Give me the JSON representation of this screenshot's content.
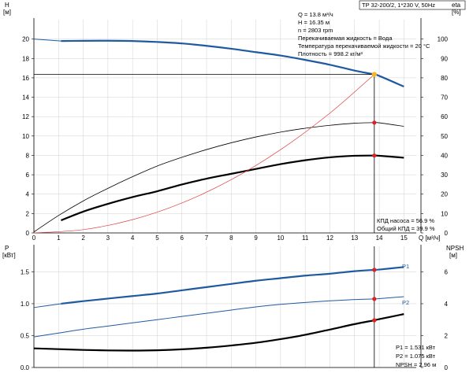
{
  "header": {
    "pump": "TP 32-200/2, 1*230 V, 50Hz"
  },
  "top_chart": {
    "ylabel_left": "H",
    "ylabel_left_unit": "[м]",
    "ylabel_right": "eta",
    "ylabel_right_unit": "[%]",
    "xlabel": "Q [м³/ч]",
    "info_lines": [
      "Q = 13.8 м³/ч",
      "H = 16.35 м",
      "n = 2803 rpm",
      "Перекачиваемая жидкость = Вода",
      "Температура перекачиваемой жидкости = 20 °C",
      "Плотность = 998.2 кг/м³"
    ],
    "eff_lines": [
      "КПД насоса = 56.9 %",
      "Общий КПД = 39.9 %"
    ]
  },
  "bottom_chart": {
    "ylabel_left": "P",
    "ylabel_left_unit": "[кВт]",
    "ylabel_right": "NPSH",
    "ylabel_right_unit": "[м]",
    "curve_labels": [
      "P1",
      "P2"
    ],
    "info_lines": [
      "P1 = 1.531 кВт",
      "P2 = 1.075 кВт",
      "NPSH = 2.96 м"
    ]
  },
  "chart_data": [
    {
      "type": "line",
      "x": [
        0,
        1,
        2,
        3,
        4,
        5,
        6,
        7,
        8,
        9,
        10,
        11,
        12,
        13,
        13.8,
        14,
        15
      ],
      "xlim": [
        0,
        15.5
      ],
      "xticks": [
        0,
        1,
        2,
        3,
        4,
        5,
        6,
        7,
        8,
        9,
        10,
        11,
        12,
        13,
        14,
        15
      ],
      "ylim": [
        0,
        22
      ],
      "yticks": [
        0,
        2,
        4,
        6,
        8,
        10,
        12,
        14,
        16,
        18,
        20
      ],
      "y2lim": [
        0,
        110
      ],
      "y2ticks": [
        0,
        10,
        20,
        30,
        40,
        50,
        60,
        70,
        80,
        90,
        100
      ],
      "series": [
        {
          "key": "H",
          "axis": "left",
          "color": "#1f5aa0",
          "points": [
            [
              1.1,
              19.8
            ],
            [
              2,
              19.82
            ],
            [
              3,
              19.83
            ],
            [
              4,
              19.8
            ],
            [
              5,
              19.7
            ],
            [
              6,
              19.55
            ],
            [
              7,
              19.3
            ],
            [
              8,
              19.0
            ],
            [
              9,
              18.65
            ],
            [
              10,
              18.3
            ],
            [
              11,
              17.85
            ],
            [
              12,
              17.35
            ],
            [
              13,
              16.75
            ],
            [
              13.8,
              16.35
            ],
            [
              14,
              16.2
            ],
            [
              15,
              15.1
            ]
          ]
        },
        {
          "key": "H_extension",
          "axis": "left",
          "color": "#1f5aa0",
          "points": [
            [
              0,
              20.0
            ],
            [
              1.1,
              19.8
            ]
          ]
        },
        {
          "key": "eta_total",
          "axis": "right",
          "color": "#000000",
          "points": [
            [
              1.1,
              6.5
            ],
            [
              2,
              11
            ],
            [
              3,
              15
            ],
            [
              4,
              18.5
            ],
            [
              5,
              21.5
            ],
            [
              6,
              25
            ],
            [
              7,
              28
            ],
            [
              8,
              30.5
            ],
            [
              9,
              33
            ],
            [
              10,
              35.5
            ],
            [
              11,
              37.5
            ],
            [
              12,
              39
            ],
            [
              13,
              39.8
            ],
            [
              13.8,
              39.9
            ],
            [
              14,
              39.8
            ],
            [
              15,
              38.8
            ]
          ]
        },
        {
          "key": "eta_pump",
          "axis": "right",
          "color": "#000000",
          "points": [
            [
              0,
              0.5
            ],
            [
              1,
              9
            ],
            [
              2,
              16.5
            ],
            [
              3,
              23
            ],
            [
              4,
              29
            ],
            [
              5,
              34.5
            ],
            [
              6,
              39
            ],
            [
              7,
              43
            ],
            [
              8,
              46.5
            ],
            [
              9,
              49.5
            ],
            [
              10,
              52
            ],
            [
              11,
              54
            ],
            [
              12,
              55.5
            ],
            [
              13,
              56.6
            ],
            [
              13.8,
              56.9
            ],
            [
              14,
              56.8
            ],
            [
              15,
              55
            ]
          ]
        },
        {
          "key": "system_curve",
          "axis": "left",
          "color": "#e04040",
          "points": [
            [
              0,
              0
            ],
            [
              2,
              0.34
            ],
            [
              4,
              1.37
            ],
            [
              6,
              3.09
            ],
            [
              8,
              5.49
            ],
            [
              10,
              8.59
            ],
            [
              12,
              12.36
            ],
            [
              13.8,
              16.35
            ]
          ]
        }
      ],
      "duty_point": {
        "q": 13.8,
        "h": 16.35,
        "eta_pump": 56.9,
        "eta_total": 39.9
      }
    },
    {
      "type": "line",
      "x": [
        0,
        1,
        2,
        3,
        4,
        5,
        6,
        7,
        8,
        9,
        10,
        11,
        12,
        13,
        13.8,
        14,
        15
      ],
      "xlim": [
        0,
        15.5
      ],
      "ylim": [
        0,
        1.9
      ],
      "yticks": [
        0,
        0.5,
        1.0,
        1.5
      ],
      "ytick_labels": [
        "0.0",
        "0.5",
        "1.0",
        "1.5"
      ],
      "y2lim": [
        0,
        7.6
      ],
      "y2ticks": [
        0,
        2,
        4,
        6
      ],
      "series": [
        {
          "key": "P1",
          "name": "P1",
          "axis": "left",
          "color": "#1f5aa0",
          "points": [
            [
              1.1,
              1.0
            ],
            [
              2,
              1.04
            ],
            [
              3,
              1.08
            ],
            [
              4,
              1.12
            ],
            [
              5,
              1.16
            ],
            [
              6,
              1.21
            ],
            [
              7,
              1.26
            ],
            [
              8,
              1.31
            ],
            [
              9,
              1.36
            ],
            [
              10,
              1.4
            ],
            [
              11,
              1.44
            ],
            [
              12,
              1.47
            ],
            [
              13,
              1.51
            ],
            [
              13.8,
              1.531
            ],
            [
              14,
              1.535
            ],
            [
              15,
              1.575
            ]
          ]
        },
        {
          "key": "P1_extension",
          "axis": "left",
          "color": "#1f5aa0",
          "points": [
            [
              0,
              0.94
            ],
            [
              1.1,
              1.0
            ]
          ]
        },
        {
          "key": "P2",
          "name": "P2",
          "axis": "left",
          "color": "#1f5aa0",
          "points": [
            [
              0,
              0.48
            ],
            [
              1,
              0.54
            ],
            [
              2,
              0.6
            ],
            [
              3,
              0.65
            ],
            [
              4,
              0.7
            ],
            [
              5,
              0.75
            ],
            [
              6,
              0.8
            ],
            [
              7,
              0.85
            ],
            [
              8,
              0.9
            ],
            [
              9,
              0.95
            ],
            [
              10,
              0.99
            ],
            [
              11,
              1.02
            ],
            [
              12,
              1.045
            ],
            [
              13,
              1.065
            ],
            [
              13.8,
              1.075
            ],
            [
              14,
              1.08
            ],
            [
              15,
              1.11
            ]
          ]
        },
        {
          "key": "NPSH",
          "axis": "right",
          "color": "#000000",
          "points": [
            [
              0,
              1.2
            ],
            [
              1,
              1.15
            ],
            [
              2,
              1.1
            ],
            [
              3,
              1.07
            ],
            [
              4,
              1.06
            ],
            [
              5,
              1.08
            ],
            [
              6,
              1.14
            ],
            [
              7,
              1.24
            ],
            [
              8,
              1.38
            ],
            [
              9,
              1.55
            ],
            [
              10,
              1.78
            ],
            [
              11,
              2.05
            ],
            [
              12,
              2.38
            ],
            [
              13,
              2.72
            ],
            [
              13.8,
              2.96
            ],
            [
              14,
              3.03
            ],
            [
              15,
              3.35
            ]
          ]
        }
      ],
      "duty_point": {
        "q": 13.8,
        "p1": 1.531,
        "p2": 1.075,
        "npsh": 2.96
      }
    }
  ],
  "colors": {
    "head_curve": "#1f5aa0",
    "power_curves": "#1f5aa0",
    "system_curve": "#e04040",
    "duty_marker": "#e02020",
    "duty_marker_head": "#f5b52a",
    "grid": "#d0d0d0"
  }
}
